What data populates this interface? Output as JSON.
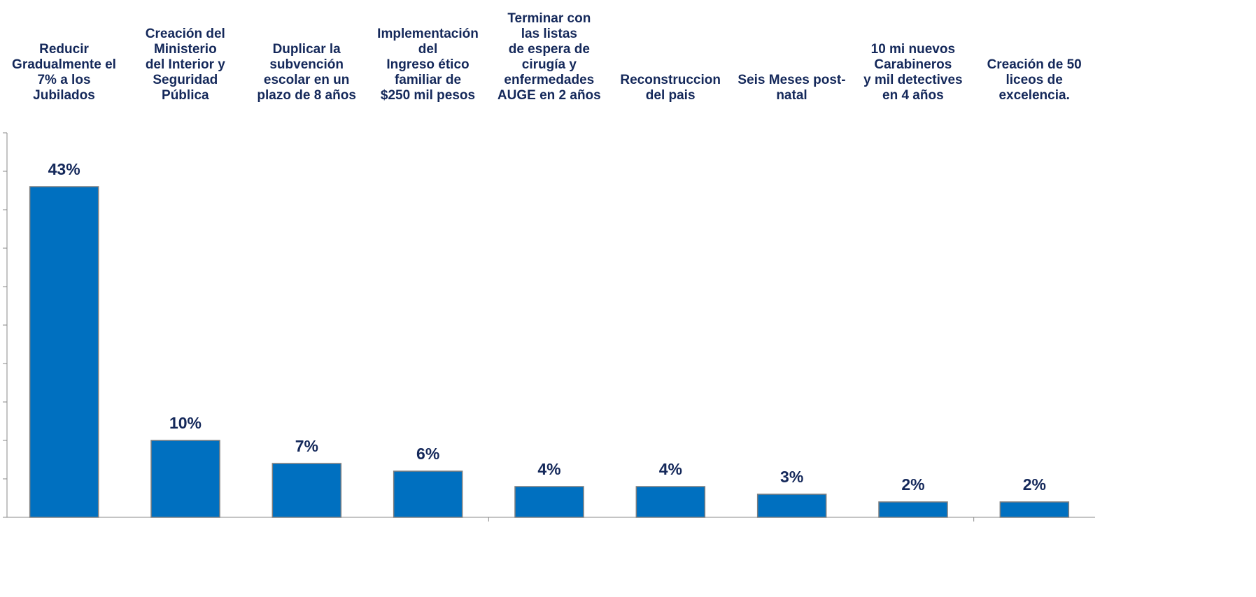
{
  "chart_data": {
    "type": "bar",
    "categories": [
      "Reducir\nGradualmente el\n7% a los\nJubilados",
      "Creación del\nMinisterio\ndel Interior y\nSeguridad\nPública",
      "Duplicar la\nsubvención\nescolar en un\nplazo de 8 años",
      "Implementación\ndel\nIngreso ético\nfamiliar de\n$250 mil pesos",
      "Terminar con\nlas listas\nde espera de\ncirugía y\nenfermedades\nAUGE en 2 años",
      "Reconstruccion\ndel pais",
      "Seis Meses post-\nnatal",
      "10 mi nuevos\nCarabineros\ny mil detectives\nen 4 años",
      "Creación de 50\nliceos de\nexcelencia."
    ],
    "values": [
      43,
      10,
      7,
      6,
      4,
      4,
      3,
      2,
      2
    ],
    "value_labels": [
      "43%",
      "10%",
      "7%",
      "6%",
      "4%",
      "4%",
      "3%",
      "2%",
      "2%"
    ],
    "color": "#0070c0",
    "ylim": [
      0,
      50
    ],
    "yticks": [
      0,
      5,
      10,
      15,
      20,
      25,
      30,
      35,
      40,
      45,
      50
    ]
  }
}
